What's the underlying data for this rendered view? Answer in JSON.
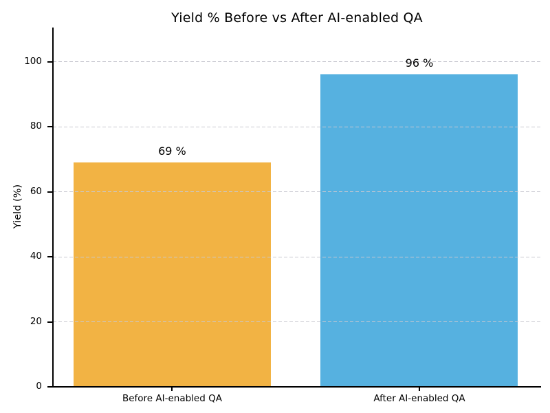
{
  "chart_data": {
    "type": "bar",
    "title": "Yield % Before vs After AI-enabled QA",
    "categories": [
      "Before AI-enabled QA",
      "After AI-enabled QA"
    ],
    "values": [
      69,
      96
    ],
    "value_labels": [
      "69 %",
      "96 %"
    ],
    "bar_colors": [
      "#F2B344",
      "#56B1E0"
    ],
    "xlabel": "",
    "ylabel": "Yield (%)",
    "yticks": [
      0,
      20,
      40,
      60,
      80,
      100
    ],
    "ylim": [
      0,
      110.5
    ],
    "grid": {
      "axis": "y",
      "style": "dashed",
      "color": "#c8c8d0",
      "drawn_over_bars": true
    },
    "legend": null,
    "background": "#ffffff",
    "spine_color": "#000000",
    "text_color": "#000000"
  }
}
